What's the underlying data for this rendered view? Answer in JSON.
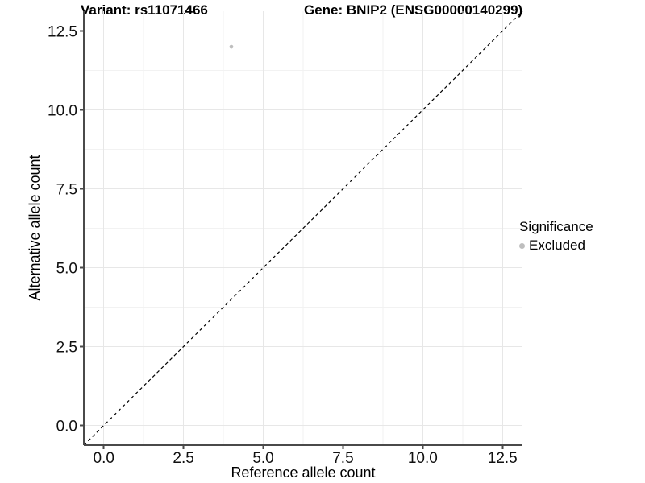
{
  "chart_data": {
    "type": "scatter",
    "title_left": "Variant: rs11071466",
    "title_right": "Gene: BNIP2 (ENSG00000140299)",
    "xlabel": "Reference allele count",
    "ylabel": "Alternative allele count",
    "xlim": [
      -0.625,
      13.125
    ],
    "ylim": [
      -0.625,
      13.125
    ],
    "x_major_ticks": [
      0,
      2.5,
      5,
      7.5,
      10,
      12.5
    ],
    "x_tick_labels": [
      "0.0",
      "2.5",
      "5.0",
      "7.5",
      "10.0",
      "12.5"
    ],
    "x_minor_ticks": [
      1.25,
      3.75,
      6.25,
      8.75,
      11.25
    ],
    "y_major_ticks": [
      0,
      2.5,
      5,
      7.5,
      10,
      12.5
    ],
    "y_tick_labels": [
      "0.0",
      "2.5",
      "5.0",
      "7.5",
      "10.0",
      "12.5"
    ],
    "y_minor_ticks": [
      1.25,
      3.75,
      6.25,
      8.75,
      11.25
    ],
    "grid": true,
    "legend_position": "right",
    "identity_line": {
      "style": "dashed",
      "color": "#000000",
      "from": [
        -0.625,
        -0.625
      ],
      "to": [
        13.125,
        13.125
      ]
    },
    "series": [
      {
        "name": "Excluded",
        "color": "#bebebe",
        "point_radius": 2.4,
        "points": [
          {
            "x": 4,
            "y": 12
          }
        ]
      }
    ],
    "legend": {
      "title": "Significance",
      "items": [
        {
          "label": "Excluded",
          "color": "#bebebe"
        }
      ]
    },
    "colors": {
      "background": "#ffffff",
      "grid_major": "#e7e7e7",
      "grid_minor": "#f2f2f2",
      "axis_line": "#4a4a4a",
      "point": "#bebebe",
      "title_text": "#000000",
      "tick_text": "#111111"
    }
  }
}
